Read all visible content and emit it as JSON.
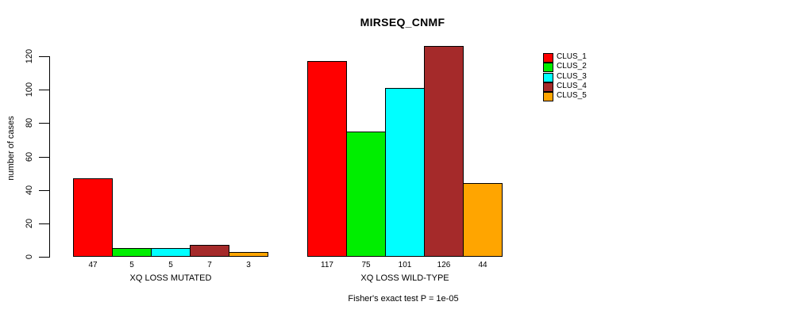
{
  "chart_data": {
    "type": "bar",
    "title": "MIRSEQ_CNMF",
    "ylabel": "number of cases",
    "xlabel": "",
    "ylim": [
      0,
      130
    ],
    "yticks": [
      0,
      20,
      40,
      60,
      80,
      100,
      120
    ],
    "grid": false,
    "legend_position": "right-inside",
    "categories": [
      "XQ LOSS MUTATED",
      "XQ LOSS WILD-TYPE"
    ],
    "series": [
      {
        "name": "CLUS_1",
        "color": "#FF0000",
        "values": [
          47,
          117
        ]
      },
      {
        "name": "CLUS_2",
        "color": "#00EE00",
        "values": [
          5,
          75
        ]
      },
      {
        "name": "CLUS_3",
        "color": "#00FFFF",
        "values": [
          5,
          101
        ]
      },
      {
        "name": "CLUS_4",
        "color": "#A52A2A",
        "values": [
          7,
          126
        ]
      },
      {
        "name": "CLUS_5",
        "color": "#FFA500",
        "values": [
          3,
          44
        ]
      }
    ],
    "bar_value_labels": true,
    "footnote": "Fisher's exact test P = 1e-05",
    "colors": {
      "bar_border": "#000000",
      "axis": "#000000",
      "text": "#000000",
      "background": "#FFFFFF"
    }
  }
}
